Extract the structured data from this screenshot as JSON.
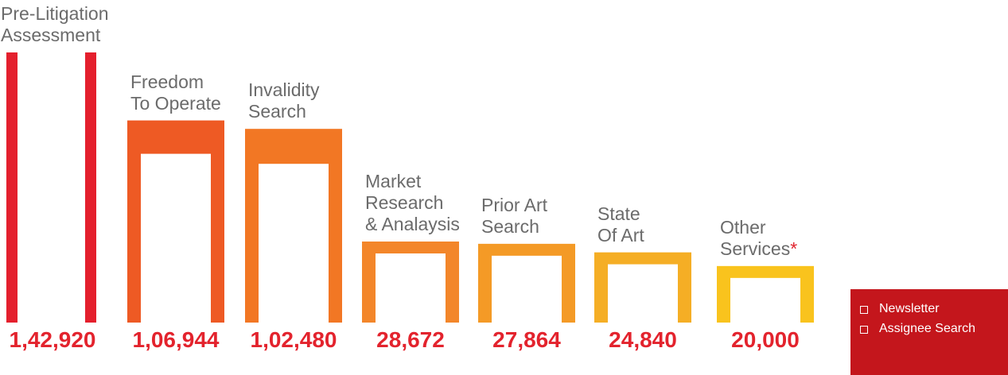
{
  "chart_data": {
    "type": "bar",
    "categories": [
      "Pre-Litigation\nAssessment",
      "Freedom\nTo Operate",
      "Invalidity\nSearch",
      "Market\nResearch\n& Analaysis",
      "Prior Art\nSearch",
      "State\nOf Art",
      "Other\nServices"
    ],
    "category_suffix": [
      "",
      "",
      "",
      "",
      "",
      "",
      "*"
    ],
    "values": [
      142920,
      106944,
      102480,
      28672,
      27864,
      24840,
      20000
    ],
    "value_labels": [
      "1,42,920",
      "1,06,944",
      "1,02,480",
      "28,672",
      "27,864",
      "24,840",
      "20,000"
    ],
    "bar_colors": [
      "#e41f2d",
      "#ee5a24",
      "#f27724",
      "#f3862a",
      "#f49a26",
      "#f5ae25",
      "#f9c31d"
    ],
    "value_label_color": "#e3232d",
    "label_color": "#6b6b6b"
  },
  "legend": {
    "background": "#c4161c",
    "items": [
      "Newsletter",
      "Assignee Search"
    ]
  }
}
